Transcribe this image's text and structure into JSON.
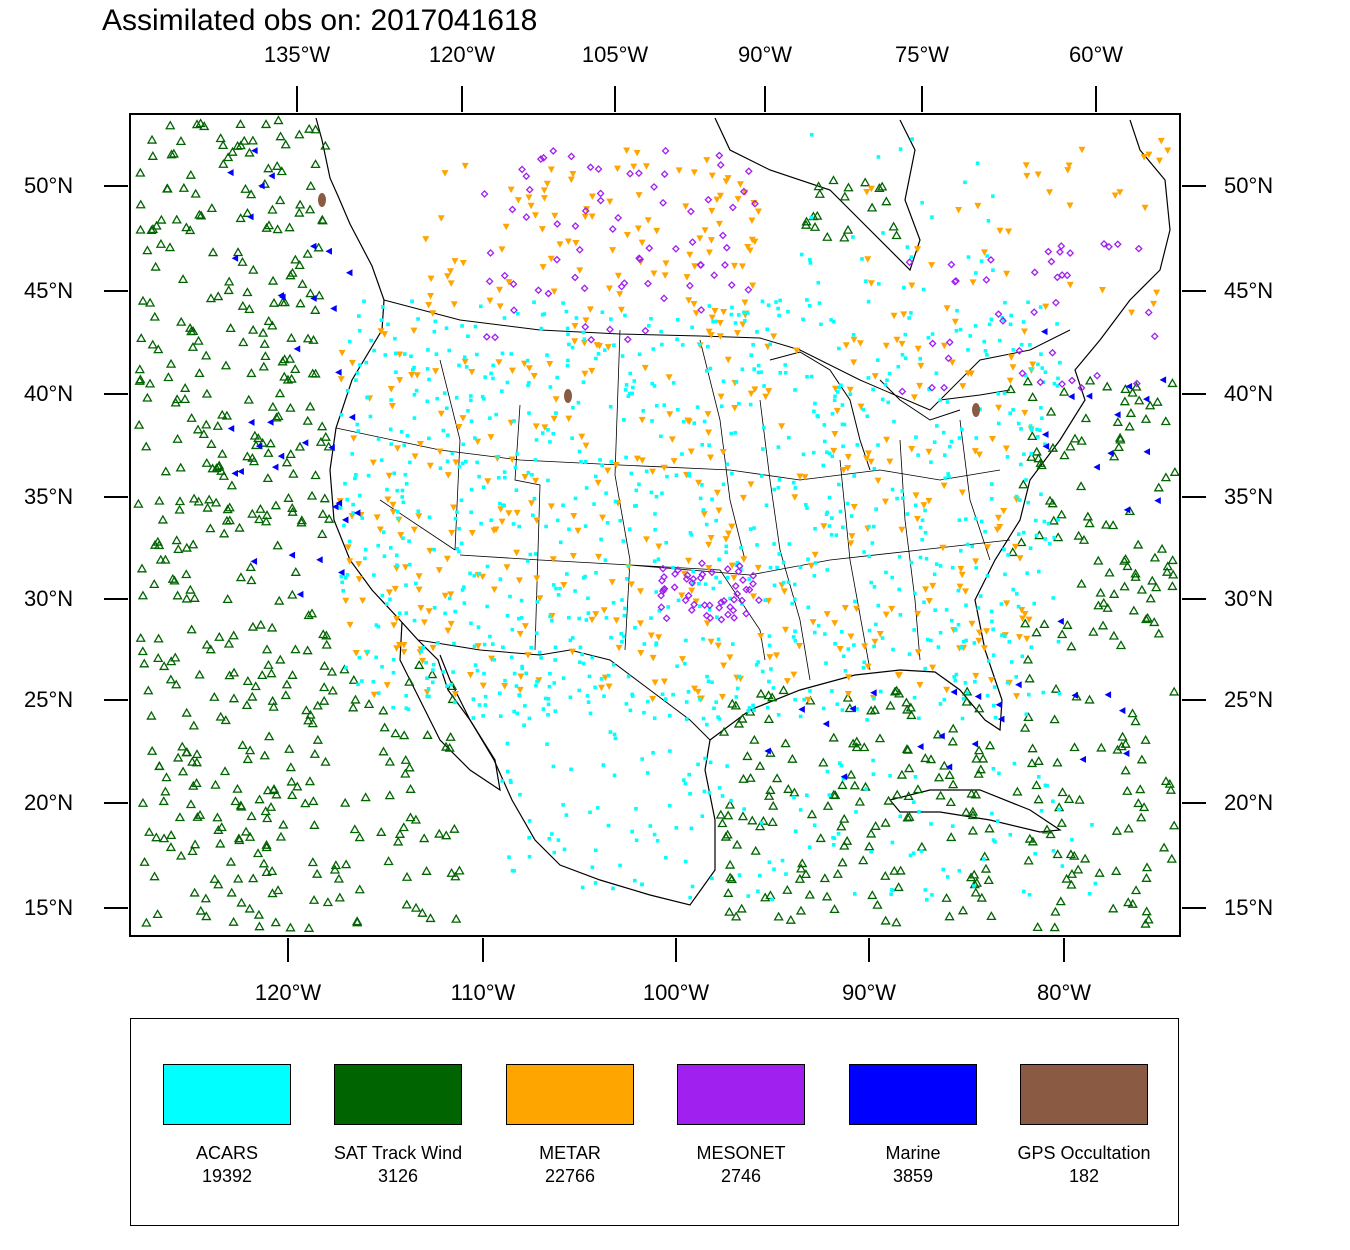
{
  "title": "Assimilated obs on: 2017041618",
  "axes": {
    "top_lon_labels": [
      "135°W",
      "120°W",
      "105°W",
      "90°W",
      "75°W",
      "60°W"
    ],
    "bottom_lon_labels": [
      "120°W",
      "110°W",
      "100°W",
      "90°W",
      "80°W"
    ],
    "lat_labels": [
      "50°N",
      "45°N",
      "40°N",
      "35°N",
      "30°N",
      "25°N",
      "20°N",
      "15°N"
    ]
  },
  "legend": [
    {
      "name": "ACARS",
      "count": "19392",
      "color": "#00ffff",
      "marker": "square"
    },
    {
      "name": "SAT Track Wind",
      "count": "3126",
      "color": "#006400",
      "marker": "open-triangle"
    },
    {
      "name": "METAR",
      "count": "22766",
      "color": "#ffa500",
      "marker": "down-triangle"
    },
    {
      "name": "MESONET",
      "count": "2746",
      "color": "#a020f0",
      "marker": "diamond"
    },
    {
      "name": "Marine",
      "count": "3859",
      "color": "#0000ff",
      "marker": "left-triangle"
    },
    {
      "name": "GPS Occultation",
      "count": "182",
      "color": "#8b5a42",
      "marker": "blob"
    }
  ]
}
